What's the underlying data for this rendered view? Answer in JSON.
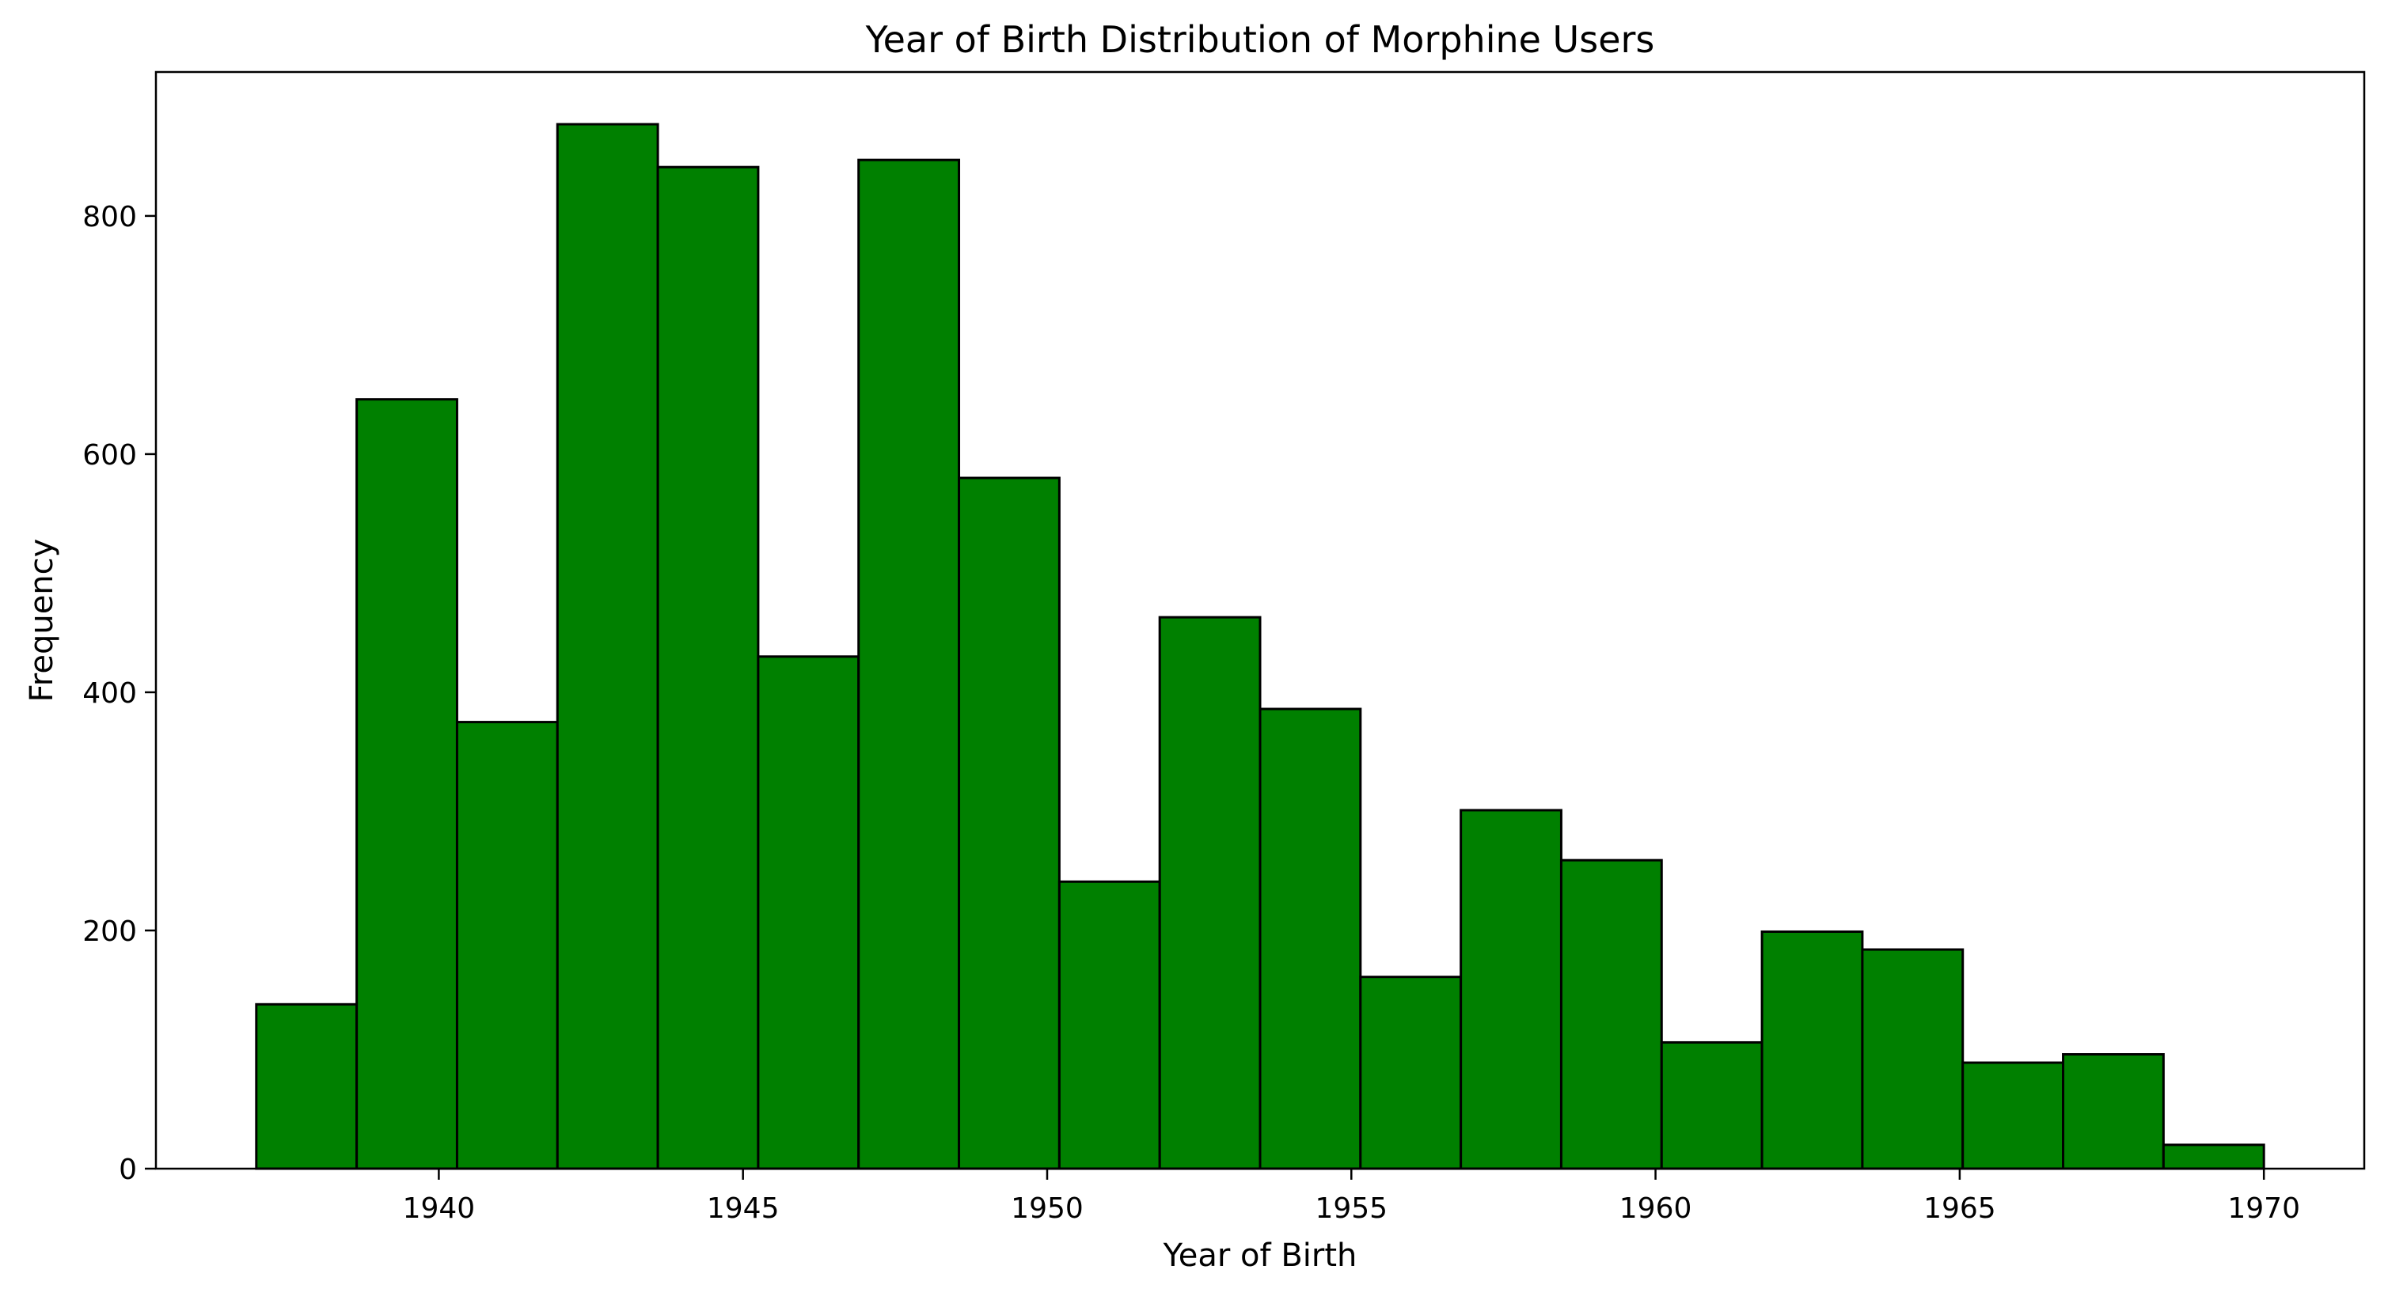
{
  "chart_data": {
    "type": "bar",
    "subtype": "histogram",
    "title": "Year of Birth Distribution of Morphine Users",
    "xlabel": "Year of Birth",
    "ylabel": "Frequency",
    "bin_edges": [
      1937,
      1938.65,
      1940.3,
      1941.95,
      1943.6,
      1945.25,
      1946.9,
      1948.55,
      1950.2,
      1951.85,
      1953.5,
      1955.15,
      1956.8,
      1958.45,
      1960.1,
      1961.75,
      1963.4,
      1965.05,
      1966.7,
      1968.35,
      1970
    ],
    "values": [
      138,
      646,
      375,
      877,
      841,
      430,
      847,
      580,
      241,
      463,
      386,
      161,
      301,
      259,
      106,
      199,
      184,
      89,
      96,
      20
    ],
    "xlim": [
      1935.35,
      1971.65
    ],
    "ylim": [
      0,
      920.85
    ],
    "xticks": [
      1940,
      1945,
      1950,
      1955,
      1960,
      1965,
      1970
    ],
    "yticks": [
      0,
      200,
      400,
      600,
      800
    ],
    "grid": false,
    "legend": null,
    "colors": {
      "bar_fill": "#008000",
      "bar_edge": "#000000",
      "axes": "#000000"
    }
  }
}
